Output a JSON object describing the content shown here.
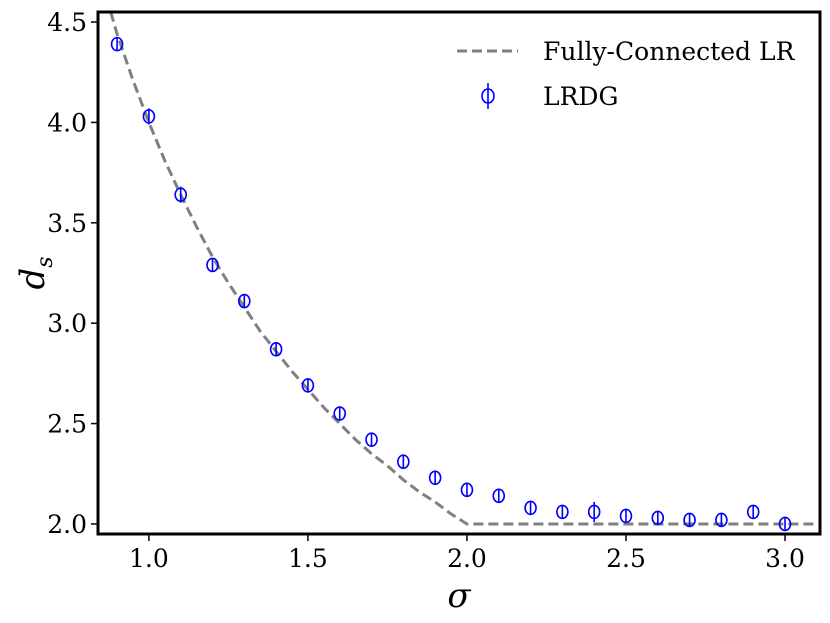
{
  "chart_data": {
    "type": "scatter",
    "xlabel": "σ",
    "ylabel": "d",
    "ylabel_sub": "s",
    "xlim": [
      0.84,
      3.11
    ],
    "ylim": [
      1.95,
      4.55
    ],
    "xticks": [
      "1.0",
      "1.5",
      "2.0",
      "2.5",
      "3.0"
    ],
    "yticks": [
      "2.0",
      "2.5",
      "3.0",
      "3.5",
      "4.0",
      "4.5"
    ],
    "grid": false,
    "legend_position": "top-right",
    "series": [
      {
        "name": "Fully-Connected LR",
        "kind": "line",
        "style": "dashed",
        "color": "#808080",
        "x": [
          0.88,
          0.9,
          0.95,
          1.0,
          1.05,
          1.1,
          1.15,
          1.2,
          1.25,
          1.3,
          1.35,
          1.4,
          1.45,
          1.5,
          1.55,
          1.6,
          1.65,
          1.7,
          1.75,
          1.8,
          1.85,
          1.9,
          1.95,
          2.0,
          3.11
        ],
        "y": [
          4.55,
          4.44,
          4.21,
          4.0,
          3.81,
          3.64,
          3.48,
          3.33,
          3.2,
          3.08,
          2.96,
          2.86,
          2.76,
          2.67,
          2.58,
          2.5,
          2.42,
          2.35,
          2.29,
          2.22,
          2.16,
          2.11,
          2.05,
          2.0,
          2.0
        ]
      },
      {
        "name": "LRDG",
        "kind": "errorbar",
        "marker": "open-circle",
        "color": "#0000ff",
        "x": [
          0.9,
          1.0,
          1.1,
          1.2,
          1.3,
          1.4,
          1.5,
          1.6,
          1.7,
          1.8,
          1.9,
          2.0,
          2.1,
          2.2,
          2.3,
          2.4,
          2.5,
          2.6,
          2.7,
          2.8,
          2.9,
          3.0
        ],
        "y": [
          4.39,
          4.03,
          3.64,
          3.29,
          3.11,
          2.87,
          2.69,
          2.55,
          2.42,
          2.31,
          2.23,
          2.17,
          2.14,
          2.08,
          2.06,
          2.06,
          2.04,
          2.03,
          2.02,
          2.02,
          2.06,
          2.0
        ],
        "yerr": [
          0.02,
          0.04,
          0.04,
          0.03,
          0.02,
          0.02,
          0.02,
          0.02,
          0.02,
          0.02,
          0.02,
          0.02,
          0.02,
          0.02,
          0.02,
          0.05,
          0.02,
          0.02,
          0.02,
          0.03,
          0.02,
          0.01
        ]
      }
    ]
  }
}
